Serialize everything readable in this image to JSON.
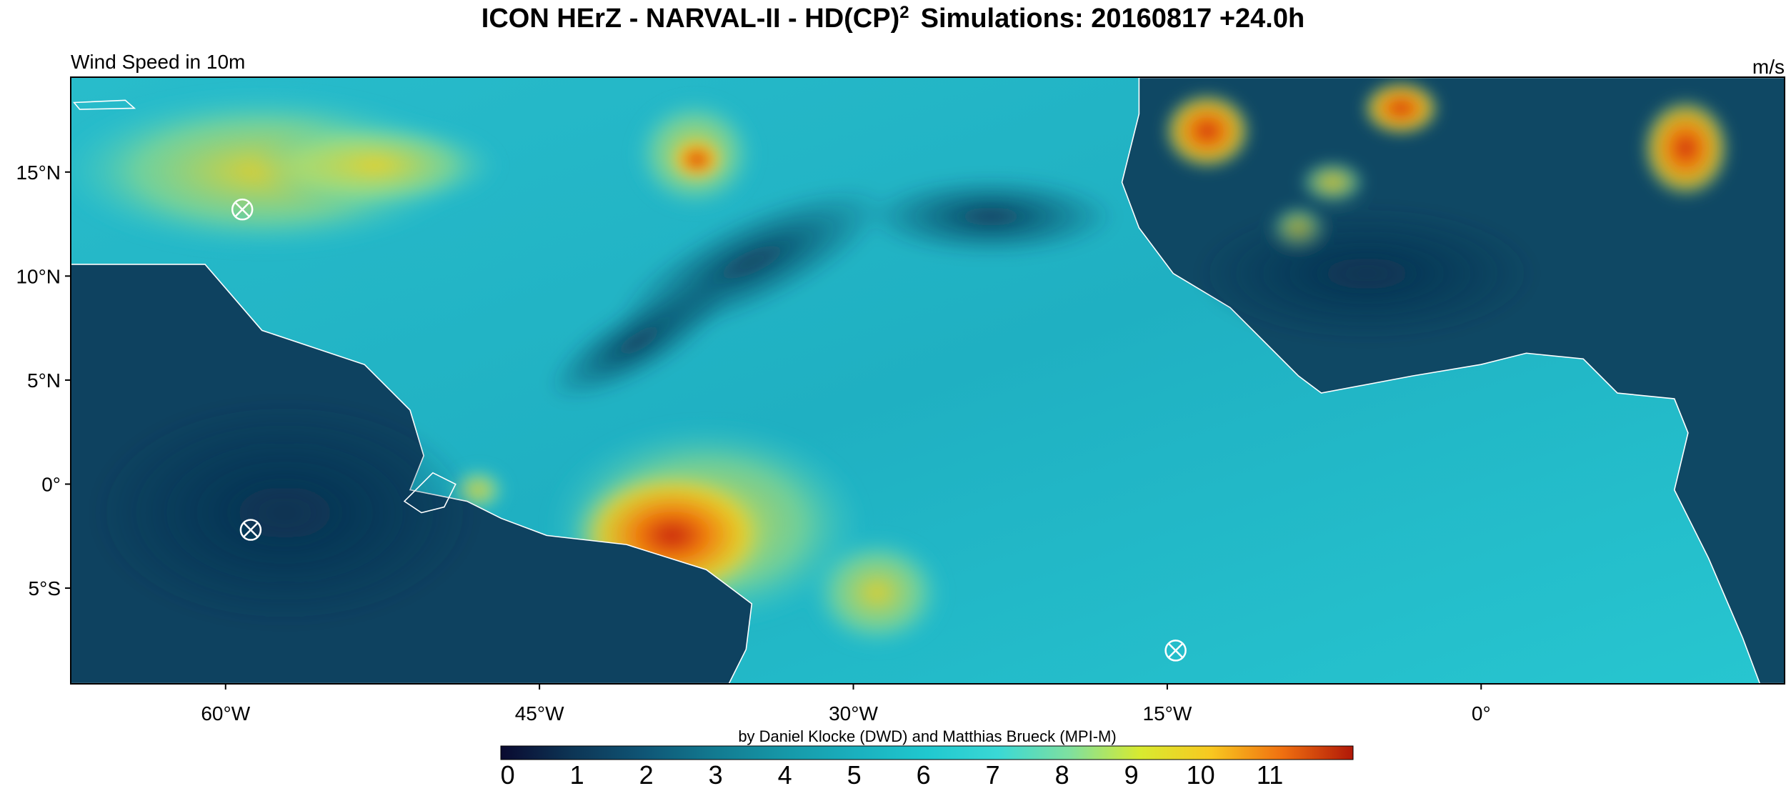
{
  "title": {
    "prefix": "ICON HErZ - NARVAL-II - HD(CP)",
    "superscript": "2",
    "suffix": "Simulations: 20160817 +24.0h"
  },
  "map": {
    "variable": "Wind Speed in 10m",
    "units": "m/s",
    "xlim": [
      -67.4,
      14.5
    ],
    "ylim": [
      -9.6,
      19.56
    ],
    "xticks": [
      {
        "value": -60,
        "label": "60°W"
      },
      {
        "value": -45,
        "label": "45°W"
      },
      {
        "value": -30,
        "label": "30°W"
      },
      {
        "value": -15,
        "label": "15°W"
      },
      {
        "value": 0,
        "label": "0°"
      }
    ],
    "yticks": [
      {
        "value": 15,
        "label": "15°N"
      },
      {
        "value": 10,
        "label": "10°N"
      },
      {
        "value": 5,
        "label": "5°N"
      },
      {
        "value": 0,
        "label": "0°"
      },
      {
        "value": -5,
        "label": "5°S"
      }
    ],
    "markers": [
      {
        "lon": -59.2,
        "lat": 13.2
      },
      {
        "lon": -58.8,
        "lat": -2.2
      },
      {
        "lon": -14.6,
        "lat": -8.0
      }
    ]
  },
  "credit": "by Daniel Klocke (DWD) and Matthias Brueck (MPI-M)",
  "colorbar": {
    "lim": [
      -0.1,
      12.2
    ],
    "ticks": [
      0,
      1,
      2,
      3,
      4,
      5,
      6,
      7,
      8,
      9,
      10,
      11
    ],
    "colors": [
      "#0a0a30",
      "#0d3555",
      "#0f5575",
      "#127a90",
      "#1698a8",
      "#1ab0be",
      "#20c8cf",
      "#3ad8d5",
      "#7ee0a0",
      "#d8ea30",
      "#f8c820",
      "#f07010",
      "#b01808"
    ]
  }
}
